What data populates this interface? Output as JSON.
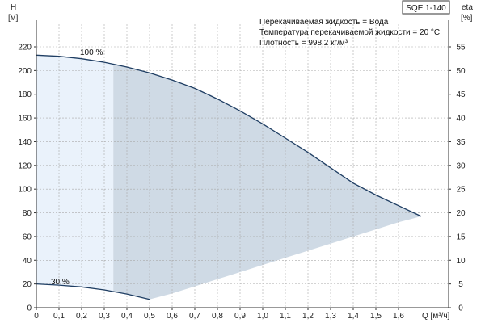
{
  "chart_data": {
    "type": "line",
    "title": "SQE 1-140",
    "info_lines": [
      "Перекачиваемая жидкость = Вода",
      "Температура перекачиваемой жидкости = 20 °C",
      "Плотность = 998.2 кг/м³"
    ],
    "xlabel": "Q [м³/ч]",
    "ylabel_left": "H",
    "ylabel_left_unit": "[м]",
    "ylabel_right": "eta",
    "ylabel_right_unit": "[%]",
    "xlim": [
      0,
      1.8
    ],
    "ylim_left": [
      0,
      240
    ],
    "ylim_right": [
      0,
      60
    ],
    "x_ticks": [
      "0",
      "0,1",
      "0,2",
      "0,3",
      "0,4",
      "0,5",
      "0,6",
      "0,7",
      "0,8",
      "0,9",
      "1,0",
      "1,1",
      "1,2",
      "1,3",
      "1,4",
      "1,5",
      "1,6"
    ],
    "x_tick_values": [
      0,
      0.1,
      0.2,
      0.3,
      0.4,
      0.5,
      0.6,
      0.7,
      0.8,
      0.9,
      1.0,
      1.1,
      1.2,
      1.3,
      1.4,
      1.5,
      1.6
    ],
    "y_left_ticks": [
      0,
      20,
      40,
      60,
      80,
      100,
      120,
      140,
      160,
      180,
      200,
      220
    ],
    "y_right_ticks": [
      0,
      5,
      10,
      15,
      20,
      25,
      30,
      35,
      40,
      45,
      50,
      55
    ],
    "grid": true,
    "series": [
      {
        "name": "100 %",
        "x": [
          0,
          0.1,
          0.2,
          0.3,
          0.4,
          0.5,
          0.6,
          0.7,
          0.8,
          0.9,
          1.0,
          1.1,
          1.2,
          1.3,
          1.4,
          1.5,
          1.6,
          1.7
        ],
        "y": [
          213,
          212,
          210,
          207,
          203,
          198,
          192,
          185,
          176,
          166,
          155,
          143,
          131,
          118,
          105,
          95,
          86,
          77
        ]
      },
      {
        "name": "30 %",
        "x": [
          0,
          0.1,
          0.2,
          0.3,
          0.4,
          0.5
        ],
        "y": [
          20,
          19,
          17.5,
          15,
          11.5,
          7
        ]
      }
    ],
    "operating_range": {
      "x": [
        0,
        0.1,
        0.2,
        0.3,
        0.34,
        0.4,
        0.5,
        0.6,
        0.7,
        0.8,
        0.9,
        1.0,
        1.1,
        1.2,
        1.3,
        1.4,
        1.5,
        1.6,
        1.7
      ],
      "upper": [
        213,
        212,
        210,
        207,
        206,
        203,
        198,
        192,
        185,
        176,
        166,
        155,
        143,
        131,
        118,
        105,
        95,
        86,
        77
      ],
      "lower": [
        20,
        19,
        17.5,
        15,
        14,
        11.5,
        7,
        12,
        18,
        24,
        30,
        36,
        42,
        48,
        54,
        60,
        66,
        72,
        77
      ]
    },
    "recommended_split_x": 0.34,
    "colors": {
      "curve": "#1f3e63",
      "fill_light": "#eaf2fb",
      "fill_dark": "#cfdae5"
    }
  }
}
